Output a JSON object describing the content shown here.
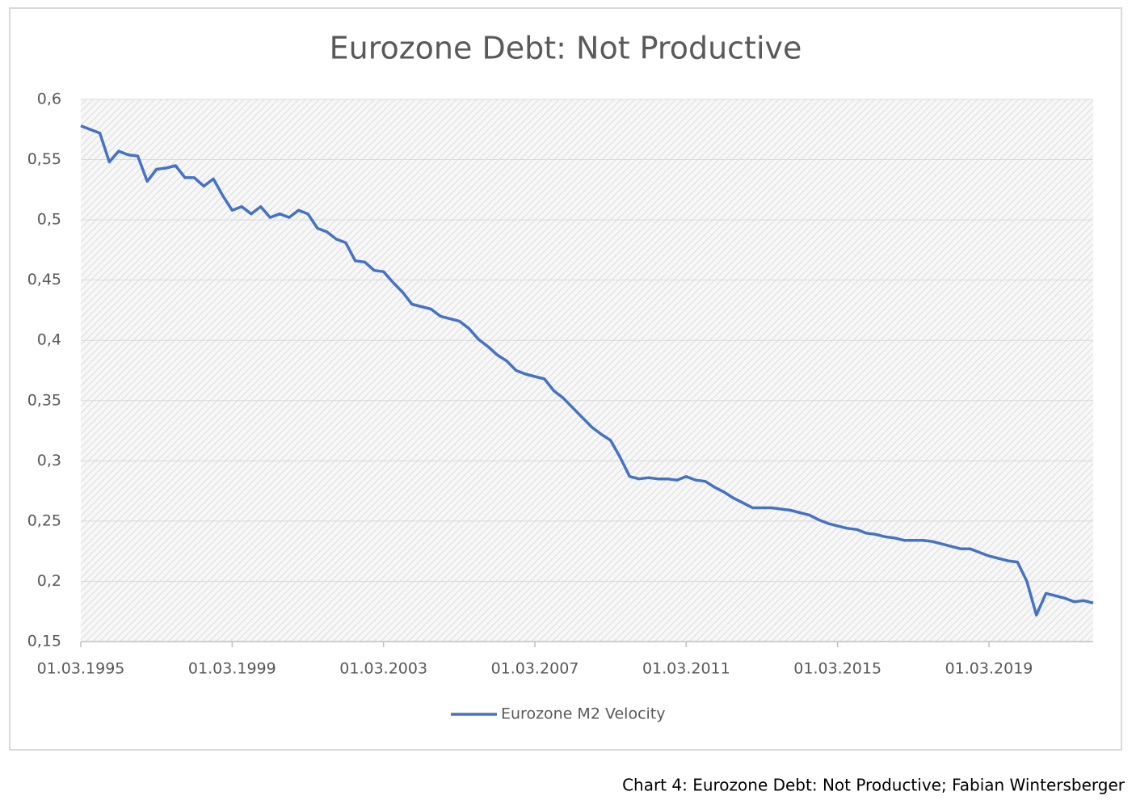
{
  "chart_data": {
    "type": "line",
    "title": "Eurozone Debt: Not Productive",
    "x": [
      "01.03.1995",
      "01.06.1995",
      "01.09.1995",
      "01.12.1995",
      "01.03.1996",
      "01.06.1996",
      "01.09.1996",
      "01.12.1996",
      "01.03.1997",
      "01.06.1997",
      "01.09.1997",
      "01.12.1997",
      "01.03.1998",
      "01.06.1998",
      "01.09.1998",
      "01.12.1998",
      "01.03.1999",
      "01.06.1999",
      "01.09.1999",
      "01.12.1999",
      "01.03.2000",
      "01.06.2000",
      "01.09.2000",
      "01.12.2000",
      "01.03.2001",
      "01.06.2001",
      "01.09.2001",
      "01.12.2001",
      "01.03.2002",
      "01.06.2002",
      "01.09.2002",
      "01.12.2002",
      "01.03.2003",
      "01.06.2003",
      "01.09.2003",
      "01.12.2003",
      "01.03.2004",
      "01.06.2004",
      "01.09.2004",
      "01.12.2004",
      "01.03.2005",
      "01.06.2005",
      "01.09.2005",
      "01.12.2005",
      "01.03.2006",
      "01.06.2006",
      "01.09.2006",
      "01.12.2006",
      "01.03.2007",
      "01.06.2007",
      "01.09.2007",
      "01.12.2007",
      "01.03.2008",
      "01.06.2008",
      "01.09.2008",
      "01.12.2008",
      "01.03.2009",
      "01.06.2009",
      "01.09.2009",
      "01.12.2009",
      "01.03.2010",
      "01.06.2010",
      "01.09.2010",
      "01.12.2010",
      "01.03.2011",
      "01.06.2011",
      "01.09.2011",
      "01.12.2011",
      "01.03.2012",
      "01.06.2012",
      "01.09.2012",
      "01.12.2012",
      "01.03.2013",
      "01.06.2013",
      "01.09.2013",
      "01.12.2013",
      "01.03.2014",
      "01.06.2014",
      "01.09.2014",
      "01.12.2014",
      "01.03.2015",
      "01.06.2015",
      "01.09.2015",
      "01.12.2015",
      "01.03.2016",
      "01.06.2016",
      "01.09.2016",
      "01.12.2016",
      "01.03.2017",
      "01.06.2017",
      "01.09.2017",
      "01.12.2017",
      "01.03.2018",
      "01.06.2018",
      "01.09.2018",
      "01.12.2018",
      "01.03.2019",
      "01.06.2019",
      "01.09.2019",
      "01.12.2019",
      "01.03.2020",
      "01.06.2020",
      "01.09.2020",
      "01.12.2020",
      "01.03.2021",
      "01.06.2021",
      "01.09.2021",
      "01.12.2021"
    ],
    "series": [
      {
        "name": "Eurozone M2 Velocity",
        "color": "#4472c4",
        "values": [
          0.578,
          0.575,
          0.572,
          0.548,
          0.557,
          0.554,
          0.553,
          0.532,
          0.542,
          0.543,
          0.545,
          0.535,
          0.535,
          0.528,
          0.534,
          0.52,
          0.508,
          0.511,
          0.505,
          0.511,
          0.502,
          0.505,
          0.502,
          0.508,
          0.505,
          0.493,
          0.49,
          0.484,
          0.481,
          0.466,
          0.465,
          0.458,
          0.457,
          0.448,
          0.44,
          0.43,
          0.428,
          0.426,
          0.42,
          0.418,
          0.416,
          0.41,
          0.401,
          0.395,
          0.388,
          0.383,
          0.375,
          0.372,
          0.37,
          0.368,
          0.358,
          0.352,
          0.344,
          0.336,
          0.328,
          0.322,
          0.317,
          0.303,
          0.287,
          0.285,
          0.286,
          0.285,
          0.285,
          0.284,
          0.287,
          0.284,
          0.283,
          0.278,
          0.274,
          0.269,
          0.265,
          0.261,
          0.261,
          0.261,
          0.26,
          0.259,
          0.257,
          0.255,
          0.251,
          0.248,
          0.246,
          0.244,
          0.243,
          0.24,
          0.239,
          0.237,
          0.236,
          0.234,
          0.234,
          0.234,
          0.233,
          0.231,
          0.229,
          0.227,
          0.227,
          0.224,
          0.221,
          0.219,
          0.217,
          0.216,
          0.2,
          0.172,
          0.19,
          0.188,
          0.186,
          0.183,
          0.184,
          0.182
        ]
      }
    ],
    "xlim": [
      "01.03.1995",
      "01.12.2021"
    ],
    "xticks": [
      "01.03.1995",
      "01.03.1999",
      "01.03.2003",
      "01.03.2007",
      "01.03.2011",
      "01.03.2015",
      "01.03.2019"
    ],
    "ylim": [
      0.15,
      0.6
    ],
    "yticks": [
      {
        "value": 0.15,
        "label": "0,15"
      },
      {
        "value": 0.2,
        "label": "0,2"
      },
      {
        "value": 0.25,
        "label": "0,25"
      },
      {
        "value": 0.3,
        "label": "0,3"
      },
      {
        "value": 0.35,
        "label": "0,35"
      },
      {
        "value": 0.4,
        "label": "0,4"
      },
      {
        "value": 0.45,
        "label": "0,45"
      },
      {
        "value": 0.5,
        "label": "0,5"
      },
      {
        "value": 0.55,
        "label": "0,55"
      },
      {
        "value": 0.6,
        "label": "0,6"
      }
    ],
    "grid": true,
    "legend": "bottom"
  },
  "caption": "Chart 4: Eurozone Debt: Not Productive; Fabian Wintersberger"
}
